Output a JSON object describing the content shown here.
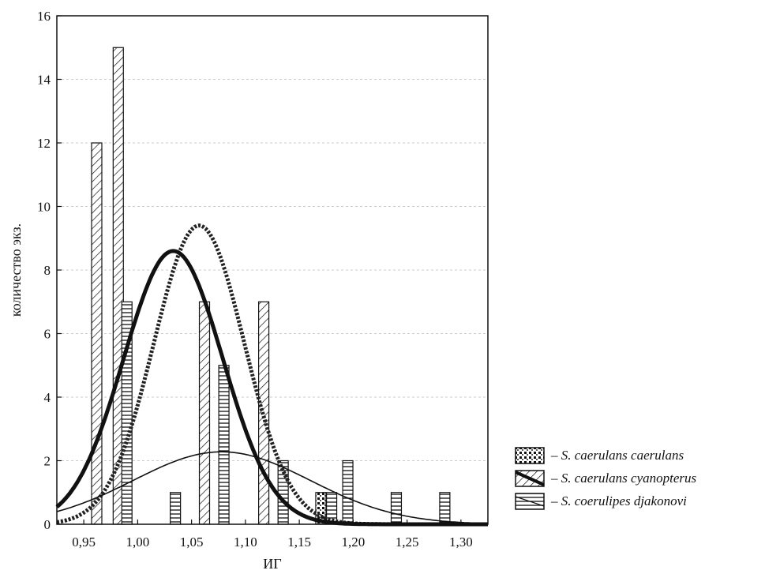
{
  "chart_data": {
    "type": "bar",
    "title": "",
    "xlabel": "ИГ",
    "ylabel": "количество экз.",
    "xlim": [
      0.925,
      1.325
    ],
    "ylim": [
      0,
      16
    ],
    "x_ticks": [
      "0,95",
      "1,00",
      "1,05",
      "1,10",
      "1,15",
      "1,20",
      "1,25",
      "1,30"
    ],
    "y_ticks": [
      "0",
      "2",
      "4",
      "6",
      "8",
      "10",
      "12",
      "14",
      "16"
    ],
    "grid": "horizontal dashed",
    "legend_position": "right of plot, bottom",
    "bin_centers": [
      0.97,
      0.99,
      1.07,
      1.09,
      1.11,
      1.13,
      1.17,
      1.19,
      1.25,
      1.29
    ],
    "series": [
      {
        "name": "S. caerulans caerulans",
        "pattern": "dots",
        "bars": [
          {
            "x": 1.17,
            "value": 1
          }
        ],
        "curve": {
          "style": "dotted-thick",
          "peak_x": 1.057,
          "peak_y": 9.4
        }
      },
      {
        "name": "S. caerulans cyanopterus",
        "pattern": "diagonal-hatch",
        "bars": [
          {
            "x": 0.962,
            "value": 12
          },
          {
            "x": 0.982,
            "value": 15
          },
          {
            "x": 1.062,
            "value": 7
          },
          {
            "x": 1.117,
            "value": 7
          }
        ],
        "curve": {
          "style": "solid-thick",
          "peak_x": 1.033,
          "peak_y": 8.6
        }
      },
      {
        "name": "S. coerulipes djakonovi",
        "pattern": "horizontal-stripes",
        "bars": [
          {
            "x": 0.99,
            "value": 7
          },
          {
            "x": 1.035,
            "value": 1
          },
          {
            "x": 1.08,
            "value": 5
          },
          {
            "x": 1.135,
            "value": 2
          },
          {
            "x": 1.18,
            "value": 1
          },
          {
            "x": 1.195,
            "value": 2
          },
          {
            "x": 1.24,
            "value": 1
          },
          {
            "x": 1.285,
            "value": 1
          }
        ],
        "curve": {
          "style": "solid-thin",
          "peak_x": 1.078,
          "peak_y": 2.28
        }
      }
    ]
  }
}
